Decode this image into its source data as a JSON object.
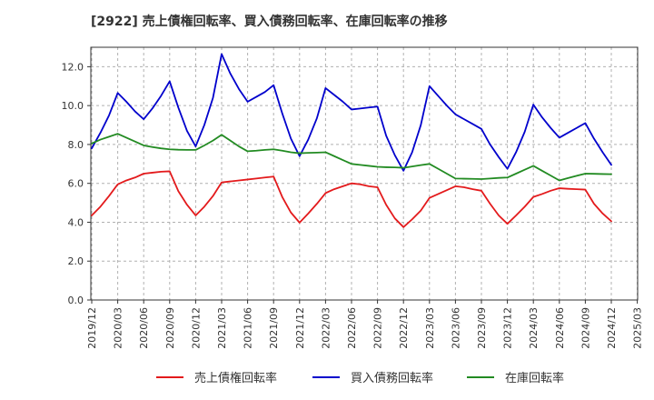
{
  "chart_data": {
    "type": "line",
    "title": "[2922]  売上債権回転率、買入債務回転率、在庫回転率の推移",
    "xlabel": "",
    "ylabel": "",
    "ylim": [
      0,
      13
    ],
    "yticks": [
      0.0,
      2.0,
      4.0,
      6.0,
      8.0,
      10.0,
      12.0
    ],
    "ytick_labels": [
      "0.0",
      "2.0",
      "4.0",
      "6.0",
      "8.0",
      "10.0",
      "12.0"
    ],
    "x_tick_labels": [
      "2019/12",
      "2020/03",
      "2020/06",
      "2020/09",
      "2020/12",
      "2021/03",
      "2021/06",
      "2021/09",
      "2021/12",
      "2022/03",
      "2022/06",
      "2022/09",
      "2022/12",
      "2023/03",
      "2023/06",
      "2023/09",
      "2023/12",
      "2024/03",
      "2024/06",
      "2024/09",
      "2024/12",
      "2025/03"
    ],
    "x_months": [
      "2019/12",
      "2020/01",
      "2020/02",
      "2020/03",
      "2020/04",
      "2020/05",
      "2020/06",
      "2020/07",
      "2020/08",
      "2020/09",
      "2020/10",
      "2020/11",
      "2020/12",
      "2021/01",
      "2021/02",
      "2021/03",
      "2021/04",
      "2021/05",
      "2021/06",
      "2021/07",
      "2021/08",
      "2021/09",
      "2021/10",
      "2021/11",
      "2021/12",
      "2022/01",
      "2022/02",
      "2022/03",
      "2022/04",
      "2022/05",
      "2022/06",
      "2022/07",
      "2022/08",
      "2022/09",
      "2022/10",
      "2022/11",
      "2022/12",
      "2023/01",
      "2023/02",
      "2023/03",
      "2023/04",
      "2023/05",
      "2023/06",
      "2023/07",
      "2023/08",
      "2023/09",
      "2023/10",
      "2023/11",
      "2023/12",
      "2024/01",
      "2024/02",
      "2024/03",
      "2024/04",
      "2024/05",
      "2024/06",
      "2024/07",
      "2024/08",
      "2024/09",
      "2024/10",
      "2024/11",
      "2024/12"
    ],
    "grid": true,
    "legend_position": "bottom",
    "series": [
      {
        "name": "売上債権回転率",
        "color": "#e31a1c",
        "values": [
          4.35,
          4.8,
          5.35,
          5.95,
          6.15,
          6.3,
          6.5,
          6.55,
          6.6,
          6.62,
          5.6,
          4.9,
          4.35,
          4.8,
          5.35,
          6.05,
          6.1,
          6.15,
          6.2,
          6.25,
          6.3,
          6.35,
          5.3,
          4.5,
          3.98,
          4.45,
          4.95,
          5.5,
          5.7,
          5.85,
          6.0,
          5.95,
          5.85,
          5.8,
          4.9,
          4.2,
          3.75,
          4.15,
          4.6,
          5.25,
          5.45,
          5.65,
          5.85,
          5.8,
          5.7,
          5.62,
          4.95,
          4.35,
          3.92,
          4.35,
          4.8,
          5.3,
          5.45,
          5.62,
          5.75,
          5.72,
          5.7,
          5.68,
          4.95,
          4.45,
          4.05
        ]
      },
      {
        "name": "買入債務回転率",
        "color": "#0000cc",
        "values": [
          7.8,
          8.6,
          9.5,
          10.65,
          10.2,
          9.7,
          9.3,
          9.85,
          10.5,
          11.25,
          9.9,
          8.7,
          7.9,
          9.0,
          10.4,
          12.65,
          11.65,
          10.85,
          10.2,
          10.45,
          10.7,
          11.05,
          9.6,
          8.3,
          7.4,
          8.25,
          9.35,
          10.9,
          10.55,
          10.2,
          9.8,
          9.85,
          9.9,
          9.95,
          8.45,
          7.45,
          6.65,
          7.6,
          9.0,
          11.0,
          10.5,
          10.0,
          9.55,
          9.3,
          9.05,
          8.8,
          8.0,
          7.35,
          6.75,
          7.6,
          8.65,
          10.05,
          9.4,
          8.85,
          8.35,
          8.6,
          8.85,
          9.1,
          8.3,
          7.6,
          6.95
        ]
      },
      {
        "name": "在庫回転率",
        "color": "#228b22",
        "values": [
          8.05,
          8.25,
          8.4,
          8.55,
          8.35,
          8.15,
          7.95,
          7.87,
          7.8,
          7.75,
          7.73,
          7.72,
          7.72,
          7.95,
          8.2,
          8.5,
          8.2,
          7.9,
          7.65,
          7.68,
          7.72,
          7.75,
          7.68,
          7.6,
          7.55,
          7.57,
          7.58,
          7.6,
          7.4,
          7.2,
          7.0,
          6.95,
          6.9,
          6.85,
          6.83,
          6.82,
          6.8,
          6.87,
          6.94,
          7.0,
          6.75,
          6.5,
          6.25,
          6.24,
          6.23,
          6.22,
          6.25,
          6.28,
          6.3,
          6.5,
          6.7,
          6.9,
          6.65,
          6.4,
          6.15,
          6.27,
          6.39,
          6.5,
          6.49,
          6.48,
          6.47
        ]
      }
    ]
  }
}
